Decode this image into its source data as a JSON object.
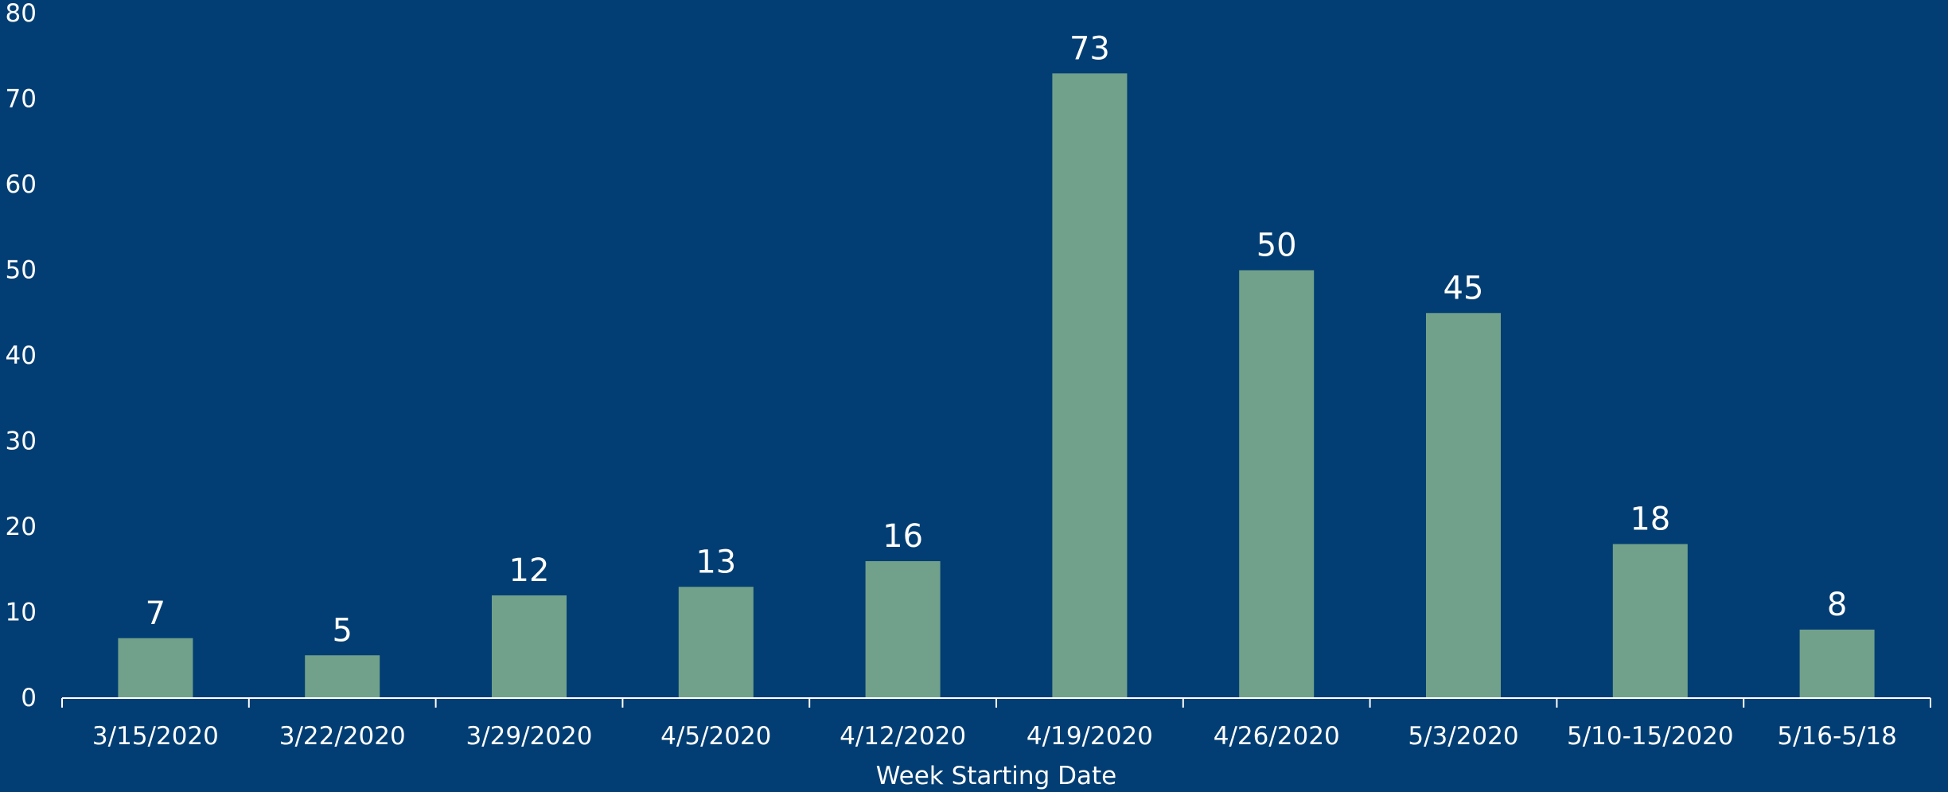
{
  "chart_data": {
    "type": "bar",
    "title": "",
    "xlabel": "Week Starting Date",
    "ylabel": "",
    "categories": [
      "3/15/2020",
      "3/22/2020",
      "3/29/2020",
      "4/5/2020",
      "4/12/2020",
      "4/19/2020",
      "4/26/2020",
      "5/3/2020",
      "5/10-15/2020",
      "5/16-5/18"
    ],
    "values": [
      7,
      5,
      12,
      13,
      16,
      73,
      50,
      45,
      18,
      8
    ],
    "ylim": [
      0,
      80
    ],
    "yticks": [
      0,
      10,
      20,
      30,
      40,
      50,
      60,
      70,
      80
    ],
    "grid": false,
    "data_labels": true,
    "colors": {
      "background": "#023e73",
      "bar": "#71a18a",
      "text": "#ffffff",
      "axis": "#ffffff"
    }
  }
}
